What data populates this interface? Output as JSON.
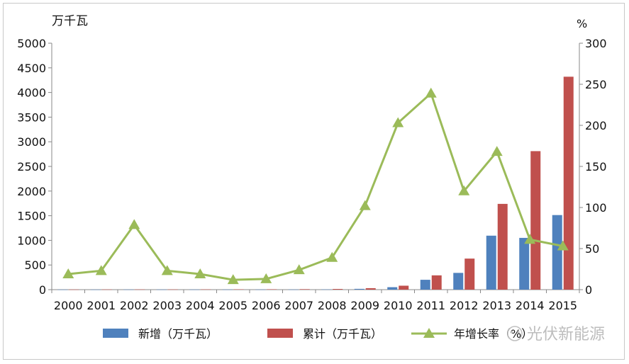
{
  "chart_data": {
    "type": "bar",
    "y_left_unit": "万千瓦",
    "y_right_unit": "%",
    "categories": [
      "2000",
      "2001",
      "2002",
      "2003",
      "2004",
      "2005",
      "2006",
      "2007",
      "2008",
      "2009",
      "2010",
      "2011",
      "2012",
      "2013",
      "2014",
      "2015"
    ],
    "ylim_left": [
      0,
      5000
    ],
    "yticks_left": [
      0,
      500,
      1000,
      1500,
      2000,
      2500,
      3000,
      3500,
      4000,
      4500,
      5000
    ],
    "ylim_right": [
      0,
      300
    ],
    "yticks_right": [
      0,
      50,
      100,
      150,
      200,
      250,
      300
    ],
    "grid": false,
    "legend_position": "bottom",
    "series": [
      {
        "name": "新增（万千瓦）",
        "type": "bar",
        "axis": "left",
        "color": "#4f81bd",
        "values": [
          2,
          2,
          3,
          3,
          3,
          3,
          3,
          3,
          5,
          16,
          50,
          200,
          340,
          1095,
          1050,
          1513
        ]
      },
      {
        "name": "累计（万千瓦）",
        "type": "bar",
        "axis": "left",
        "color": "#c0504d",
        "values": [
          3,
          4,
          5,
          5,
          6,
          7,
          8,
          10,
          14,
          30,
          80,
          290,
          630,
          1740,
          2810,
          4320
        ]
      },
      {
        "name": "年增长率（%）",
        "type": "line",
        "axis": "right",
        "color": "#9bbb59",
        "values": [
          19,
          23,
          79,
          23,
          19,
          12,
          13,
          24,
          39,
          102,
          203,
          239,
          120,
          168,
          61,
          53
        ]
      }
    ]
  },
  "watermark": "光伏新能源"
}
